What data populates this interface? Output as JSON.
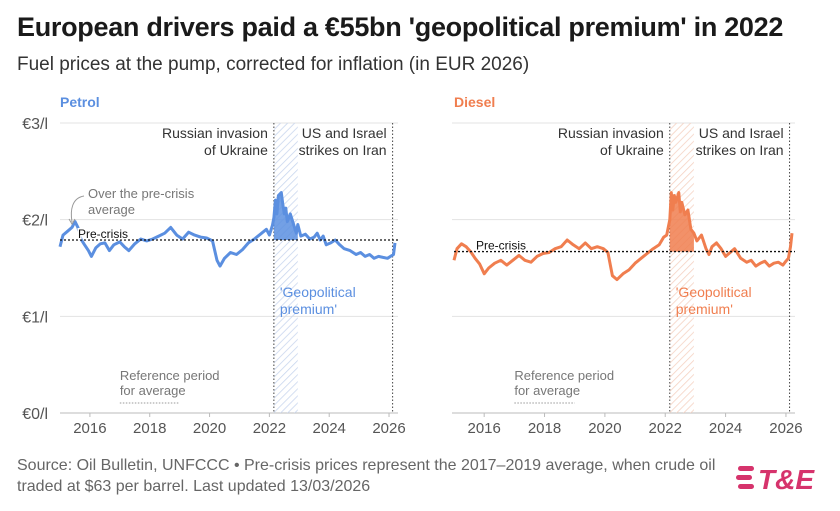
{
  "title": "European drivers paid a €55bn 'geopolitical premium' in 2022",
  "subtitle": "Fuel prices at the pump, corrected for inflation (in EUR 2026)",
  "source": "Source: Oil Bulletin, UNFCCC • Pre-crisis prices represent the 2017–2019 average, when crude oil traded at $63 per barrel. Last updated 13/03/2026",
  "logo_text": "T&E",
  "colors": {
    "petrol": "#5b8fe0",
    "diesel": "#f07e4f",
    "text": "#222222",
    "muted": "#777777",
    "logo": "#d6336c"
  },
  "chart_data": [
    {
      "type": "line",
      "name": "Petrol",
      "title": "Petrol",
      "ylabel": "",
      "xlabel": "",
      "y_unit": "€/l",
      "ylim": [
        0,
        3
      ],
      "xlim": [
        2015.0,
        2026.3
      ],
      "yticks": [
        0,
        1,
        2,
        3
      ],
      "ytick_labels": [
        "€0/l",
        "€1/l",
        "€2/l",
        "€3/l"
      ],
      "xticks": [
        2016,
        2018,
        2020,
        2022,
        2024,
        2026
      ],
      "xtick_labels": [
        "2016",
        "2018",
        "2020",
        "2022",
        "2024",
        "2026"
      ],
      "pre_crisis_value": 1.79,
      "pre_crisis_label": "Pre-crisis",
      "reference_period": [
        2017,
        2019
      ],
      "reference_label": [
        "Reference period",
        "for average"
      ],
      "over_label": [
        "Over the pre-crisis",
        "average"
      ],
      "invasion_date": 2022.15,
      "invasion_label": [
        "Russian invasion",
        "of Ukraine"
      ],
      "iran_date": 2026.12,
      "iran_label": [
        "US and Israel",
        "strikes on Iran"
      ],
      "premium_period": [
        2022.15,
        2022.95
      ],
      "premium_label": [
        "'Geopolitical",
        "premium'"
      ],
      "x": [
        2015.0,
        2015.1,
        2015.25,
        2015.4,
        2015.5,
        2015.6,
        2015.7,
        2015.8,
        2015.95,
        2016.05,
        2016.2,
        2016.35,
        2016.5,
        2016.65,
        2016.8,
        2017.0,
        2017.15,
        2017.3,
        2017.5,
        2017.7,
        2017.9,
        2018.1,
        2018.3,
        2018.5,
        2018.7,
        2018.9,
        2019.1,
        2019.3,
        2019.5,
        2019.7,
        2019.9,
        2020.1,
        2020.25,
        2020.35,
        2020.5,
        2020.7,
        2020.9,
        2021.1,
        2021.3,
        2021.5,
        2021.7,
        2021.9,
        2022.0,
        2022.1,
        2022.15,
        2022.2,
        2022.25,
        2022.3,
        2022.4,
        2022.45,
        2022.5,
        2022.55,
        2022.6,
        2022.7,
        2022.8,
        2022.9,
        2022.95,
        2023.05,
        2023.2,
        2023.35,
        2023.5,
        2023.6,
        2023.7,
        2023.8,
        2023.9,
        2024.05,
        2024.2,
        2024.35,
        2024.5,
        2024.7,
        2024.9,
        2025.05,
        2025.2,
        2025.35,
        2025.5,
        2025.65,
        2025.8,
        2025.95,
        2026.05,
        2026.15,
        2026.2
      ],
      "values": [
        1.72,
        1.84,
        1.88,
        1.92,
        1.98,
        1.92,
        1.8,
        1.75,
        1.68,
        1.62,
        1.71,
        1.75,
        1.76,
        1.68,
        1.74,
        1.77,
        1.72,
        1.68,
        1.75,
        1.8,
        1.78,
        1.8,
        1.83,
        1.86,
        1.92,
        1.84,
        1.8,
        1.87,
        1.84,
        1.82,
        1.81,
        1.78,
        1.58,
        1.52,
        1.6,
        1.66,
        1.64,
        1.69,
        1.76,
        1.8,
        1.85,
        1.9,
        1.84,
        1.94,
        2.02,
        2.2,
        2.06,
        2.25,
        2.28,
        2.16,
        2.06,
        2.12,
        1.98,
        2.06,
        1.96,
        1.86,
        1.95,
        1.83,
        1.85,
        1.8,
        1.82,
        1.86,
        1.79,
        1.83,
        1.74,
        1.76,
        1.79,
        1.74,
        1.7,
        1.68,
        1.64,
        1.66,
        1.62,
        1.64,
        1.6,
        1.62,
        1.61,
        1.6,
        1.62,
        1.64,
        1.76
      ]
    },
    {
      "type": "line",
      "name": "Diesel",
      "title": "Diesel",
      "ylabel": "",
      "xlabel": "",
      "y_unit": "€/l",
      "ylim": [
        0,
        3
      ],
      "xlim": [
        2015.0,
        2026.3
      ],
      "yticks": [
        0,
        1,
        2,
        3
      ],
      "xticks": [
        2016,
        2018,
        2020,
        2022,
        2024,
        2026
      ],
      "xtick_labels": [
        "2016",
        "2018",
        "2020",
        "2022",
        "2024",
        "2026"
      ],
      "pre_crisis_value": 1.67,
      "pre_crisis_label": "Pre-crisis",
      "reference_period": [
        2017,
        2019
      ],
      "reference_label": [
        "Reference period",
        "for average"
      ],
      "invasion_date": 2022.15,
      "invasion_label": [
        "Russian invasion",
        "of Ukraine"
      ],
      "iran_date": 2026.12,
      "iran_label": [
        "US and Israel",
        "strikes on Iran"
      ],
      "premium_period": [
        2022.15,
        2022.95
      ],
      "premium_label": [
        "'Geopolitical",
        "premium'"
      ],
      "x": [
        2015.0,
        2015.1,
        2015.25,
        2015.4,
        2015.55,
        2015.7,
        2015.85,
        2016.0,
        2016.15,
        2016.35,
        2016.55,
        2016.75,
        2016.95,
        2017.15,
        2017.35,
        2017.55,
        2017.75,
        2017.95,
        2018.15,
        2018.35,
        2018.55,
        2018.75,
        2018.95,
        2019.15,
        2019.35,
        2019.55,
        2019.75,
        2019.95,
        2020.1,
        2020.25,
        2020.4,
        2020.6,
        2020.8,
        2021.0,
        2021.2,
        2021.4,
        2021.6,
        2021.8,
        2021.95,
        2022.05,
        2022.15,
        2022.2,
        2022.25,
        2022.3,
        2022.35,
        2022.45,
        2022.5,
        2022.55,
        2022.65,
        2022.75,
        2022.85,
        2022.95,
        2023.05,
        2023.2,
        2023.35,
        2023.45,
        2023.55,
        2023.7,
        2023.85,
        2024.0,
        2024.15,
        2024.3,
        2024.5,
        2024.7,
        2024.85,
        2025.0,
        2025.15,
        2025.3,
        2025.45,
        2025.6,
        2025.75,
        2025.9,
        2026.0,
        2026.08,
        2026.15,
        2026.2
      ],
      "values": [
        1.58,
        1.7,
        1.75,
        1.72,
        1.67,
        1.6,
        1.54,
        1.44,
        1.5,
        1.55,
        1.58,
        1.53,
        1.58,
        1.63,
        1.58,
        1.56,
        1.62,
        1.65,
        1.66,
        1.7,
        1.72,
        1.79,
        1.74,
        1.7,
        1.76,
        1.7,
        1.72,
        1.7,
        1.66,
        1.42,
        1.38,
        1.44,
        1.48,
        1.55,
        1.6,
        1.65,
        1.7,
        1.74,
        1.82,
        1.84,
        2.0,
        2.28,
        2.1,
        2.25,
        2.18,
        2.28,
        2.08,
        2.18,
        2.05,
        2.1,
        1.9,
        1.86,
        1.78,
        1.84,
        1.7,
        1.64,
        1.72,
        1.76,
        1.7,
        1.62,
        1.66,
        1.7,
        1.6,
        1.56,
        1.58,
        1.52,
        1.55,
        1.57,
        1.52,
        1.55,
        1.56,
        1.53,
        1.57,
        1.6,
        1.72,
        1.86
      ]
    }
  ]
}
